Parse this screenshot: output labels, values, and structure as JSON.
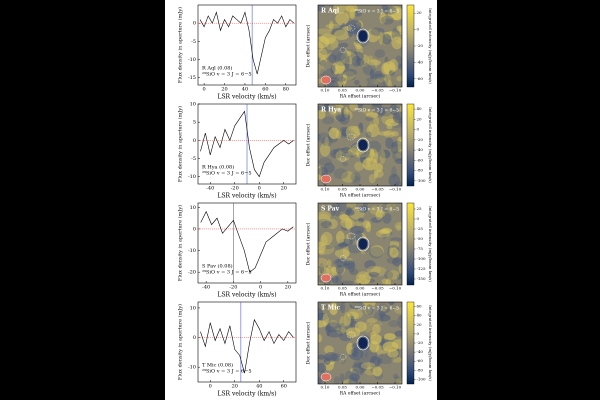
{
  "chart_data": [
    {
      "type": "line",
      "title": "R Aql (0.08)",
      "subtitle": "²⁹SiO v = 3 J = 6−5",
      "xlabel": "LSR velocity (km/s)",
      "ylabel": "Flux density in aperture (mJy)",
      "x": [
        -4,
        0,
        4,
        8,
        12,
        16,
        20,
        24,
        28,
        32,
        36,
        40,
        44,
        48,
        52,
        56,
        60,
        64,
        68,
        72,
        76,
        80,
        84,
        88
      ],
      "values": [
        1,
        -1,
        2,
        0,
        3,
        -2,
        1,
        -1,
        2,
        1,
        0,
        3,
        -2,
        -10,
        -14,
        -9,
        -4,
        -2,
        1,
        0,
        2,
        -1,
        1,
        0
      ],
      "color": "#000000",
      "hline": 0,
      "hline_color": "#e05050",
      "vline": 47,
      "vline_color": "#3040c0",
      "xlim": [
        -6,
        90
      ],
      "ylim": [
        -17,
        5
      ],
      "xticks": [
        0,
        20,
        40,
        60,
        80
      ],
      "yticks": [
        0,
        -5,
        -10,
        -15
      ]
    },
    {
      "type": "heatmap",
      "title": "R Aql",
      "subtitle": "²⁹SiO v = 3 J = 6−5",
      "xlabel": "RA offset (arcsec)",
      "ylabel": "Dec offset (arcsec)",
      "cblabel": "Integrated intensity (mJy/beam km/s)",
      "xlim": [
        0.12,
        -0.12
      ],
      "xticks": [
        {
          "value": 0.1,
          "label": "0.10"
        },
        {
          "value": 0.05,
          "label": "0.05"
        },
        {
          "value": 0,
          "label": "0.00"
        },
        {
          "value": -0.05,
          "label": "−0.05"
        },
        {
          "value": -0.1,
          "label": "−0.10"
        }
      ],
      "cblim": [
        -70,
        30
      ],
      "cbticks": [
        20,
        0,
        -20,
        -40,
        -60
      ]
    },
    {
      "type": "line",
      "title": "R Hya (0.08)",
      "subtitle": "²⁹SiO v = 3 J = 6−5",
      "xlabel": "LSR velocity (km/s)",
      "ylabel": "Flux density in aperture (mJy)",
      "x": [
        -48,
        -44,
        -40,
        -36,
        -32,
        -28,
        -24,
        -20,
        -16,
        -12,
        -8,
        -4,
        0,
        4,
        8,
        12,
        16,
        20,
        24,
        28
      ],
      "values": [
        -3,
        2,
        -4,
        1,
        -2,
        3,
        0,
        4,
        6,
        8,
        -2,
        -8,
        -10,
        -6,
        -4,
        -2,
        -1,
        0,
        -1,
        0
      ],
      "color": "#000000",
      "hline": 0,
      "hline_color": "#e05050",
      "vline": -10,
      "vline_color": "#3040c0",
      "xlim": [
        -50,
        30
      ],
      "ylim": [
        -12,
        10
      ],
      "xticks": [
        -40,
        -20,
        0,
        20
      ],
      "yticks": [
        10,
        5,
        0,
        -5,
        -10
      ]
    },
    {
      "type": "heatmap",
      "title": "R Hya",
      "subtitle": "²⁹SiO v = 3 J = 6−5",
      "xlabel": "RA offset (arcsec)",
      "ylabel": "Dec offset (arcsec)",
      "cblabel": "Integrated intensity (mJy/beam km/s)",
      "xlim": [
        0.12,
        -0.12
      ],
      "xticks": [
        {
          "value": 0.1,
          "label": "0.10"
        },
        {
          "value": 0.05,
          "label": "0.05"
        },
        {
          "value": 0,
          "label": "0.00"
        },
        {
          "value": -0.05,
          "label": "−0.05"
        },
        {
          "value": -0.1,
          "label": "−0.10"
        }
      ],
      "cblim": [
        -110,
        50
      ],
      "cbticks": [
        40,
        20,
        0,
        -20,
        -40,
        -60,
        -80,
        -100
      ]
    },
    {
      "type": "line",
      "title": "S Pav (0.08)",
      "subtitle": "²⁹SiO v = 3 J = 6−5",
      "xlabel": "LSR velocity (km/s)",
      "ylabel": "Flux density in aperture (mJy)",
      "x": [
        -44,
        -40,
        -36,
        -32,
        -28,
        -24,
        -20,
        -16,
        -12,
        -8,
        -4,
        0,
        4,
        8,
        12,
        16,
        20,
        24
      ],
      "values": [
        3,
        8,
        2,
        5,
        -2,
        1,
        4,
        -3,
        -10,
        -20,
        -18,
        -12,
        -6,
        -4,
        -2,
        0,
        -1,
        1
      ],
      "color": "#000000",
      "hline": 0,
      "hline_color": "#e05050",
      "vline": -20,
      "vline_color": "#3040c0",
      "xlim": [
        -46,
        26
      ],
      "ylim": [
        -25,
        12
      ],
      "xticks": [
        -40,
        -20,
        0,
        20
      ],
      "yticks": [
        10,
        0,
        -10,
        -20
      ]
    },
    {
      "type": "heatmap",
      "title": "S Pav",
      "subtitle": "²⁹SiO v = 3 J = 6−5",
      "xlabel": "RA offset (arcsec)",
      "ylabel": "Dec offset (arcsec)",
      "cblabel": "Integrated intensity (mJy/beam km/s)",
      "xlim": [
        0.12,
        -0.12
      ],
      "xticks": [
        {
          "value": 0.1,
          "label": "0.10"
        },
        {
          "value": 0.05,
          "label": "0.05"
        },
        {
          "value": 0,
          "label": "0.00"
        },
        {
          "value": -0.05,
          "label": "−0.05"
        },
        {
          "value": -0.1,
          "label": "−0.10"
        }
      ],
      "cblim": [
        -165,
        40
      ],
      "cbticks": [
        25,
        0,
        -25,
        -50,
        -75,
        -100,
        -125,
        -150
      ]
    },
    {
      "type": "line",
      "title": "T Mic (0.08)",
      "subtitle": "²⁹SiO v = 3 J = 6−5",
      "xlabel": "LSR velocity (km/s)",
      "ylabel": "Flux density in aperture (mJy)",
      "x": [
        -8,
        -4,
        0,
        4,
        8,
        12,
        16,
        20,
        24,
        28,
        32,
        36,
        40,
        44,
        48,
        52,
        56,
        60,
        64,
        68
      ],
      "values": [
        2,
        -3,
        5,
        -1,
        3,
        -2,
        4,
        -4,
        -6,
        -12,
        -2,
        6,
        3,
        -1,
        2,
        -2,
        1,
        -1,
        2,
        0
      ],
      "color": "#000000",
      "hline": 0,
      "hline_color": "#e05050",
      "vline": 25,
      "vline_color": "#3040c0",
      "xlim": [
        -10,
        70
      ],
      "ylim": [
        -15,
        12
      ],
      "xticks": [
        0,
        20,
        40,
        60
      ],
      "yticks": [
        10,
        0,
        -10
      ]
    },
    {
      "type": "heatmap",
      "title": "T Mic",
      "subtitle": "²⁹SiO v = 3 J = 6−5",
      "xlabel": "RA offset (arcsec)",
      "ylabel": "Dec offset (arcsec)",
      "cblabel": "Integrated intensity (mJy/beam km/s)",
      "xlim": [
        0.12,
        -0.12
      ],
      "xticks": [
        {
          "value": 0.1,
          "label": "0.10"
        },
        {
          "value": 0.05,
          "label": "0.05"
        },
        {
          "value": 0,
          "label": "0.00"
        },
        {
          "value": -0.05,
          "label": "−0.05"
        },
        {
          "value": -0.1,
          "label": "−0.10"
        }
      ],
      "cblim": [
        -110,
        70
      ],
      "cbticks": [
        60,
        40,
        20,
        0,
        -20,
        -40,
        -60,
        -80,
        -100
      ]
    }
  ]
}
